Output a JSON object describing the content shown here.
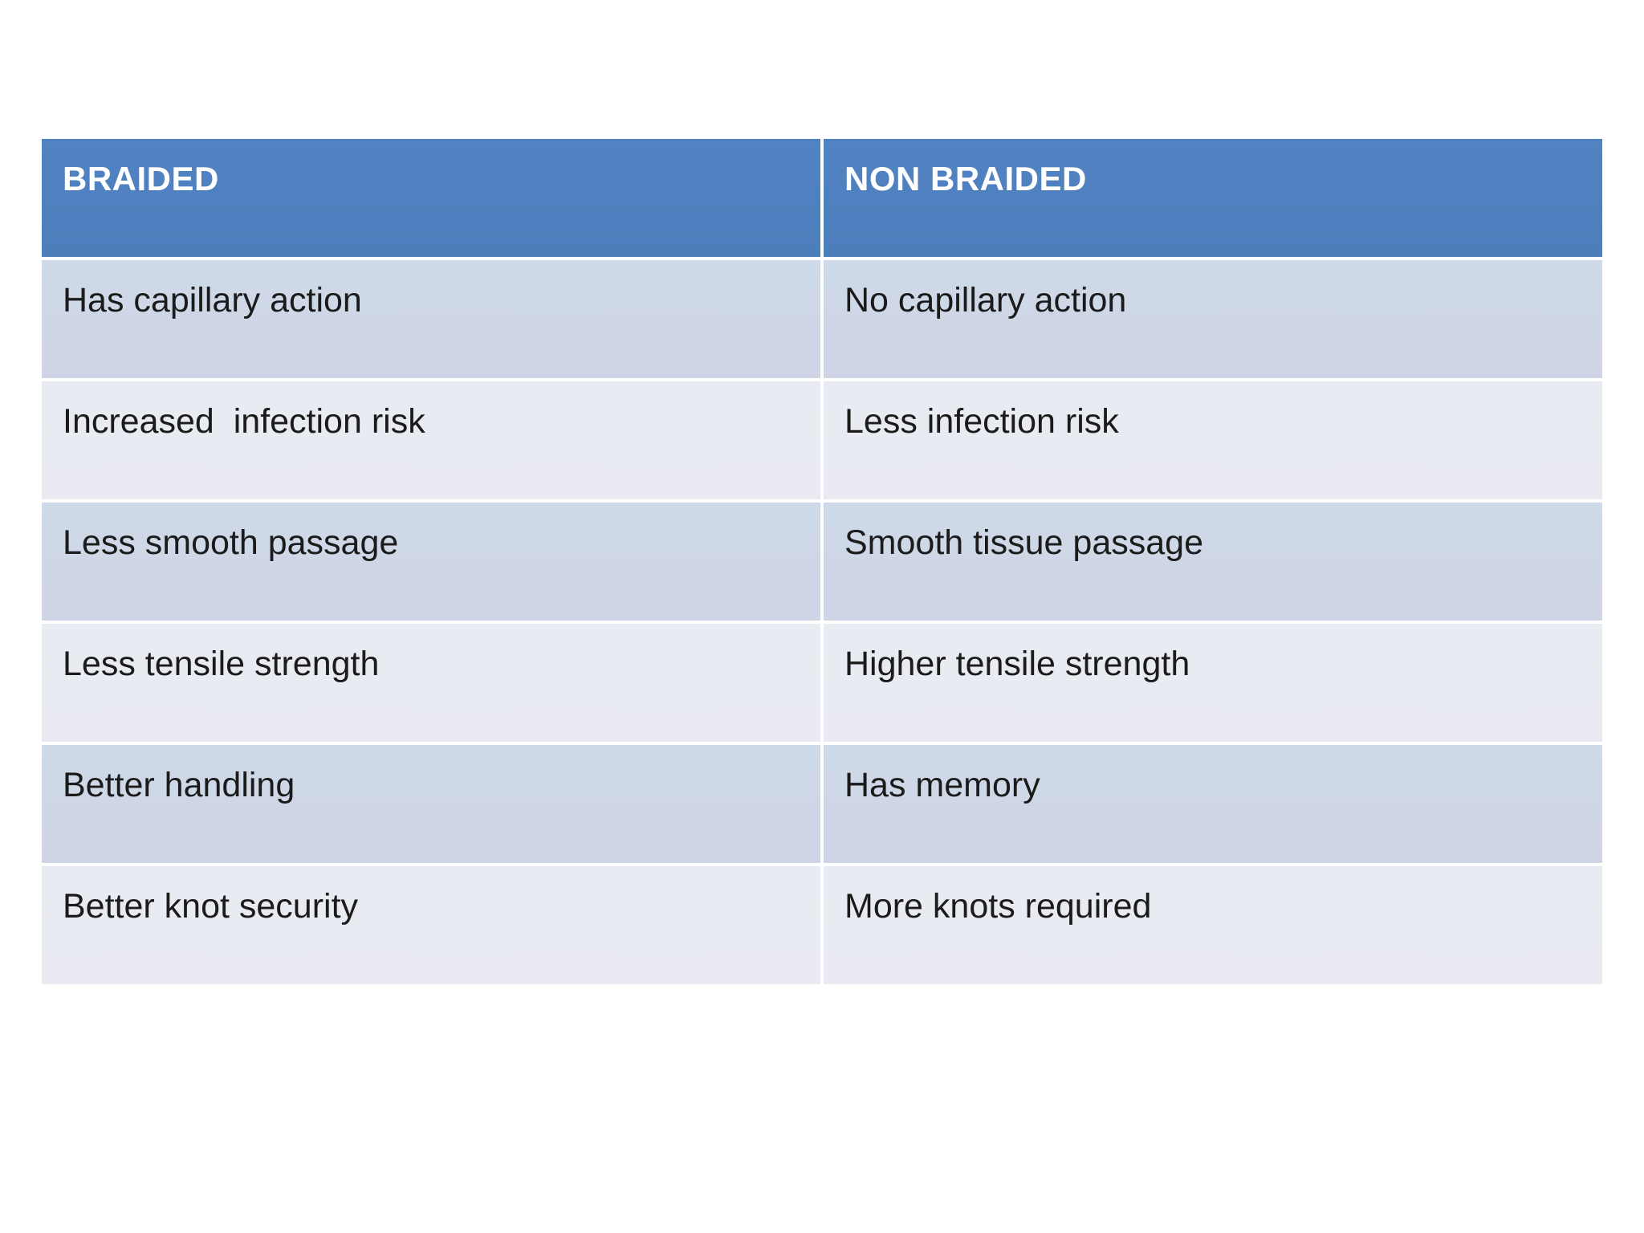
{
  "table": {
    "columns": [
      {
        "label": "BRAIDED"
      },
      {
        "label": "NON BRAIDED"
      }
    ],
    "rows": [
      {
        "left": "Has capillary action",
        "right": "No capillary action"
      },
      {
        "left": "Increased  infection risk",
        "right": "Less infection risk"
      },
      {
        "left": "Less smooth passage",
        "right": "Smooth tissue passage"
      },
      {
        "left": "Less tensile strength",
        "right": "Higher tensile strength"
      },
      {
        "left": "Better handling",
        "right": "Has memory"
      },
      {
        "left": "Better knot security",
        "right": "More knots required"
      }
    ],
    "colors": {
      "header_bg": "#4f80c0",
      "header_text": "#ffffff",
      "band_odd": "#cfd6e7",
      "band_even": "#e9ebf2",
      "body_text": "#1b1b1b",
      "divider": "#ffffff",
      "page_bg": "#ffffff"
    }
  }
}
